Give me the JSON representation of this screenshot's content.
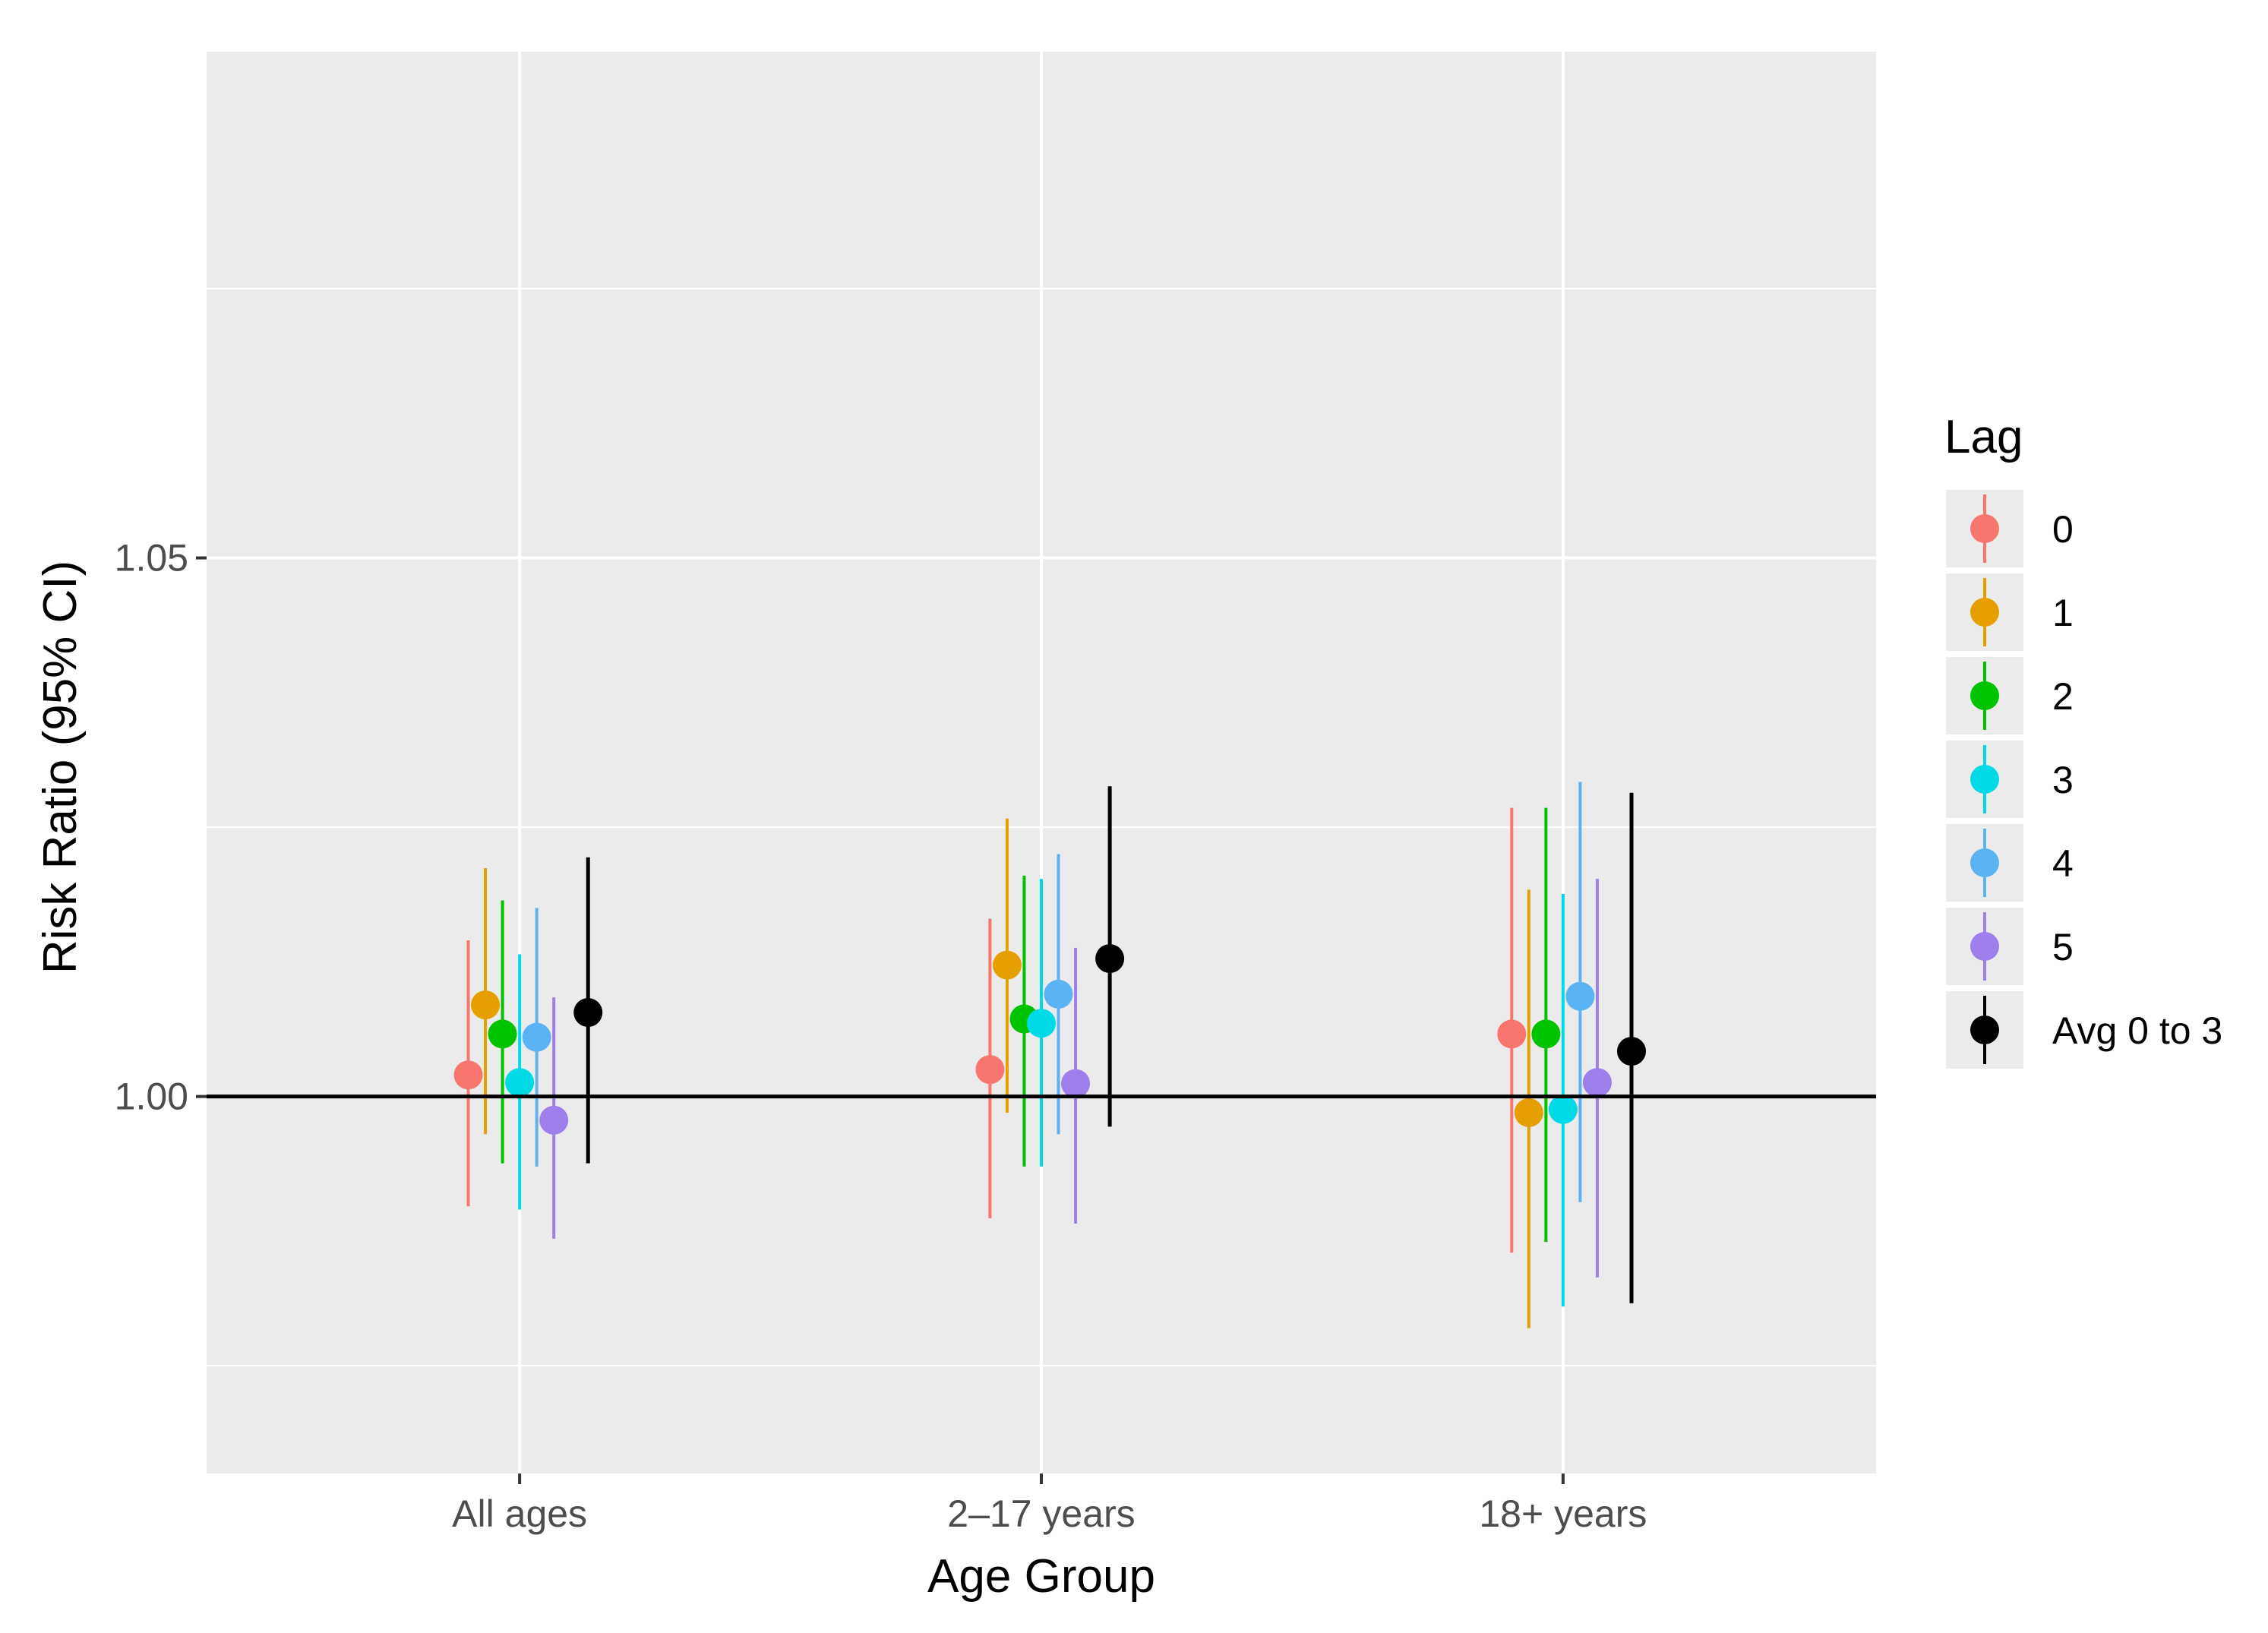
{
  "chart_data": {
    "type": "scatter",
    "title": "",
    "xlabel": "Age Group",
    "ylabel": "Risk Ratio (95% CI)",
    "categories": [
      "All ages",
      "2–17 years",
      "18+ years"
    ],
    "ylim": [
      0.965,
      1.097
    ],
    "yticks": [
      1.0,
      1.05
    ],
    "ytick_labels": [
      "1.00",
      "1.05"
    ],
    "reference_line": 1.0,
    "grid": true,
    "legend_title": "Lag",
    "legend_position": "right",
    "series": [
      {
        "name": "0",
        "color": "#F8766D",
        "estimates": [
          1.002,
          1.0025,
          1.0058
        ],
        "lower": [
          0.9898,
          0.9887,
          0.9855
        ],
        "upper": [
          1.0145,
          1.0165,
          1.0268
        ]
      },
      {
        "name": "1",
        "color": "#E69F00",
        "estimates": [
          1.0085,
          1.0122,
          0.9985
        ],
        "lower": [
          0.9965,
          0.9985,
          0.9785
        ],
        "upper": [
          1.0212,
          1.0258,
          1.0192
        ]
      },
      {
        "name": "2",
        "color": "#00C300",
        "estimates": [
          1.0058,
          1.0072,
          1.0058
        ],
        "lower": [
          0.9938,
          0.9935,
          0.9865
        ],
        "upper": [
          1.0182,
          1.0205,
          1.0268
        ]
      },
      {
        "name": "3",
        "color": "#00D9E6",
        "estimates": [
          1.0013,
          1.0068,
          0.9988
        ],
        "lower": [
          0.9895,
          0.9935,
          0.9805
        ],
        "upper": [
          1.0132,
          1.0202,
          1.0188
        ]
      },
      {
        "name": "4",
        "color": "#5CB3F3",
        "estimates": [
          1.0055,
          1.0095,
          1.0093
        ],
        "lower": [
          0.9935,
          0.9965,
          0.9902
        ],
        "upper": [
          1.0175,
          1.0225,
          1.0292
        ]
      },
      {
        "name": "5",
        "color": "#9F7FEB",
        "estimates": [
          0.9978,
          1.0012,
          1.0013
        ],
        "lower": [
          0.9868,
          0.9882,
          0.9832
        ],
        "upper": [
          1.0092,
          1.0138,
          1.0202
        ]
      },
      {
        "name": "Avg 0 to 3",
        "color": "#000000",
        "estimates": [
          1.0078,
          1.0128,
          1.0042
        ],
        "lower": [
          0.9938,
          0.9972,
          0.9808
        ],
        "upper": [
          1.0222,
          1.0288,
          1.0282
        ]
      }
    ]
  }
}
